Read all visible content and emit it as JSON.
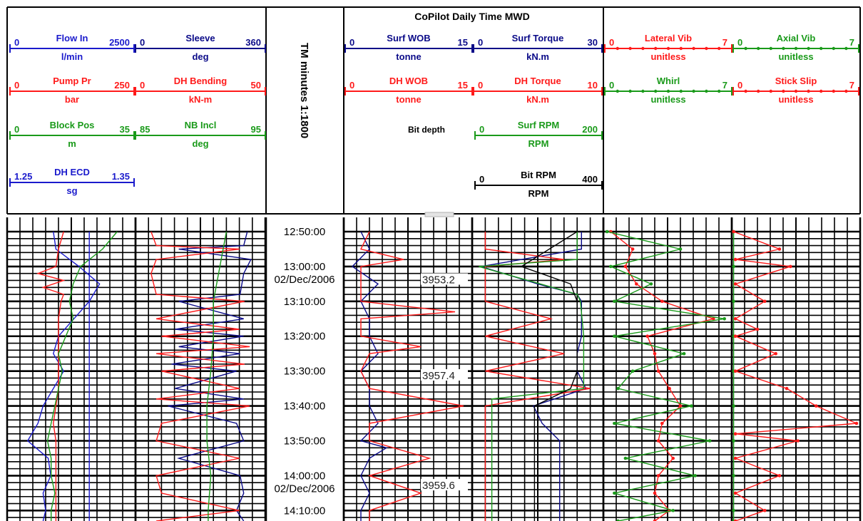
{
  "title": "CoPilot Daily Time MWD",
  "time_axis_label": "TM minutes 1:1800",
  "depth_label": "Bit depth",
  "colors": {
    "blue": "#1a1acc",
    "red": "#ff1a1a",
    "green": "#1a9a1a",
    "navy": "#0a0a88",
    "black": "#000000"
  },
  "tracks": [
    {
      "curves": [
        {
          "name": "Flow In",
          "min": "0",
          "max": "2500",
          "unit": "l/min",
          "color": "blue"
        },
        {
          "name": "Pump Pr",
          "min": "0",
          "max": "250",
          "unit": "bar",
          "color": "red"
        },
        {
          "name": "Block Pos",
          "min": "0",
          "max": "35",
          "unit": "m",
          "color": "green"
        },
        {
          "name": "DH ECD",
          "min": "1.25",
          "max": "1.35",
          "unit": "sg",
          "color": "blue"
        }
      ]
    },
    {
      "curves": [
        {
          "name": "Sleeve",
          "min": "0",
          "max": "360",
          "unit": "deg",
          "color": "navy"
        },
        {
          "name": "DH Bending",
          "min": "0",
          "max": "50",
          "unit": "kN-m",
          "color": "red"
        },
        {
          "name": "NB Incl",
          "min": "85",
          "max": "95",
          "unit": "deg",
          "color": "green"
        }
      ]
    },
    {
      "curves": [
        {
          "name": "Surf WOB",
          "min": "0",
          "max": "15",
          "unit": "tonne",
          "color": "navy"
        },
        {
          "name": "DH WOB",
          "min": "0",
          "max": "15",
          "unit": "tonne",
          "color": "red"
        }
      ]
    },
    {
      "curves": [
        {
          "name": "Surf Torque",
          "min": "0",
          "max": "30",
          "unit": "kN.m",
          "color": "navy"
        },
        {
          "name": "DH Torque",
          "min": "0",
          "max": "10",
          "unit": "kN.m",
          "color": "red"
        },
        {
          "name": "Surf RPM",
          "min": "0",
          "max": "200",
          "unit": "RPM",
          "color": "green"
        },
        {
          "name": "Bit RPM",
          "min": "0",
          "max": "400",
          "unit": "RPM",
          "color": "black"
        }
      ]
    },
    {
      "curves": [
        {
          "name": "Lateral Vib",
          "min": "0",
          "max": "7",
          "unit": "unitless",
          "color": "red"
        },
        {
          "name": "Whirl",
          "min": "0",
          "max": "7",
          "unit": "unitless",
          "color": "green"
        }
      ]
    },
    {
      "curves": [
        {
          "name": "Axial Vib",
          "min": "0",
          "max": "7",
          "unit": "unitless",
          "color": "green"
        },
        {
          "name": "Stick Slip",
          "min": "0",
          "max": "7",
          "unit": "unitless",
          "color": "red"
        }
      ]
    }
  ],
  "chart_data": {
    "type": "line",
    "time_ticks": [
      "12:50:00",
      "13:00:00",
      "13:10:00",
      "13:20:00",
      "13:30:00",
      "13:40:00",
      "13:50:00",
      "14:00:00",
      "14:10:00"
    ],
    "date_labels": [
      {
        "after_time": "13:00:00",
        "text": "02/Dec/2006"
      },
      {
        "after_time": "14:00:00",
        "text": "02/Dec/2006"
      }
    ],
    "depth_labels": [
      {
        "time": "13:04:00",
        "value": "3953.2"
      },
      {
        "time": "13:31:30",
        "value": "3957.4"
      },
      {
        "time": "14:03:00",
        "value": "3959.6"
      }
    ],
    "time_range_minutes": [
      0,
      83
    ],
    "series": [
      {
        "name": "Flow In",
        "track": 0,
        "min": 0,
        "max": 2500,
        "color": "blue",
        "t": [
          0,
          5,
          10,
          15,
          20,
          25,
          30,
          35,
          40,
          45,
          50,
          55,
          60,
          65,
          70,
          75,
          80,
          83
        ],
        "v": [
          900,
          950,
          1400,
          1800,
          1600,
          1300,
          1000,
          900,
          1100,
          900,
          700,
          600,
          400,
          800,
          850,
          700,
          750,
          700
        ]
      },
      {
        "name": "Pump Pr",
        "track": 0,
        "min": 0,
        "max": 250,
        "color": "red",
        "t": [
          0,
          5,
          10,
          12,
          14,
          16,
          18,
          20,
          25,
          30,
          35,
          40,
          45,
          50,
          55,
          60,
          65,
          70,
          75,
          80,
          83
        ],
        "v": [
          110,
          100,
          95,
          60,
          110,
          70,
          110,
          105,
          100,
          100,
          100,
          100,
          100,
          95,
          90,
          95,
          95,
          95,
          95,
          95,
          95
        ]
      },
      {
        "name": "Block Pos",
        "track": 0,
        "min": 0,
        "max": 35,
        "color": "green",
        "t": [
          0,
          5,
          10,
          15,
          20,
          25,
          30,
          35,
          40,
          45,
          50,
          55,
          60,
          65,
          70,
          75,
          80,
          83
        ],
        "v": [
          30,
          26,
          20,
          18,
          17,
          18,
          16,
          14,
          15,
          14,
          13,
          12,
          11,
          12,
          12,
          13,
          12,
          12
        ]
      },
      {
        "name": "DH ECD",
        "track": 0,
        "min": 1.25,
        "max": 1.35,
        "color": "blue",
        "t": [
          0,
          10,
          20,
          30,
          40,
          50,
          60,
          70,
          80,
          83
        ],
        "v": [
          1.314,
          1.314,
          1.314,
          1.314,
          1.314,
          1.314,
          1.314,
          1.314,
          1.314,
          1.314
        ]
      },
      {
        "name": "Sleeve",
        "track": 1,
        "min": 0,
        "max": 360,
        "color": "navy",
        "t": [
          0,
          4,
          5,
          8,
          12,
          18,
          20,
          25,
          28,
          30,
          33,
          35,
          38,
          40,
          45,
          48,
          50,
          55,
          60,
          65,
          70,
          75,
          80,
          83
        ],
        "v": [
          310,
          300,
          120,
          320,
          300,
          290,
          120,
          300,
          110,
          300,
          120,
          290,
          100,
          280,
          110,
          300,
          90,
          280,
          300,
          120,
          290,
          300,
          280,
          300
        ]
      },
      {
        "name": "DH Bending",
        "track": 1,
        "min": 0,
        "max": 50,
        "color": "red",
        "t": [
          0,
          4,
          5,
          8,
          12,
          18,
          20,
          25,
          28,
          30,
          33,
          35,
          38,
          40,
          45,
          48,
          50,
          55,
          60,
          65,
          70,
          75,
          80,
          83
        ],
        "v": [
          6,
          8,
          40,
          8,
          6,
          8,
          42,
          8,
          40,
          10,
          44,
          8,
          42,
          10,
          40,
          8,
          44,
          10,
          8,
          40,
          8,
          10,
          40,
          8
        ]
      },
      {
        "name": "NB Incl",
        "track": 1,
        "min": 85,
        "max": 95,
        "color": "green",
        "t": [
          0,
          10,
          20,
          30,
          40,
          50,
          60,
          70,
          80,
          83
        ],
        "v": [
          92,
          91.5,
          91,
          91,
          90.8,
          90.5,
          90.5,
          90.8,
          90.6,
          90.6
        ]
      },
      {
        "name": "Surf WOB",
        "track": 2,
        "min": 0,
        "max": 15,
        "color": "navy",
        "t": [
          0,
          5,
          10,
          15,
          20,
          25,
          30,
          35,
          40,
          45,
          50,
          55,
          60,
          62,
          65,
          70,
          75,
          80,
          83
        ],
        "v": [
          2,
          3,
          1,
          4,
          2,
          3,
          3,
          4,
          2,
          3,
          3,
          4,
          2,
          5,
          3,
          2,
          3,
          2,
          2
        ]
      },
      {
        "name": "DH WOB",
        "track": 2,
        "min": 0,
        "max": 15,
        "color": "red",
        "t": [
          0,
          5,
          8,
          10,
          15,
          20,
          23,
          25,
          30,
          33,
          35,
          40,
          45,
          50,
          55,
          60,
          65,
          70,
          75,
          80,
          83
        ],
        "v": [
          3,
          2,
          7,
          2,
          2,
          2,
          13,
          2,
          2,
          9,
          3,
          2,
          3,
          14,
          3,
          3,
          10,
          3,
          9,
          3,
          3
        ]
      },
      {
        "name": "Surf Torque",
        "track": 3,
        "min": 0,
        "max": 30,
        "color": "navy",
        "t": [
          0,
          5,
          10,
          15,
          18,
          20,
          25,
          30,
          35,
          40,
          45,
          50,
          55,
          60,
          65,
          70,
          75,
          80,
          83
        ],
        "v": [
          25,
          25,
          2,
          15,
          24,
          25,
          25,
          25,
          24,
          24,
          26,
          14,
          16,
          20,
          20,
          20,
          20,
          20,
          20
        ]
      },
      {
        "name": "DH Torque",
        "track": 3,
        "min": 0,
        "max": 10,
        "color": "red",
        "t": [
          0,
          5,
          8,
          10,
          15,
          20,
          25,
          30,
          35,
          40,
          45,
          50,
          55,
          60,
          65,
          70,
          75,
          80,
          83
        ],
        "v": [
          1,
          1,
          7,
          1,
          1,
          1,
          6,
          1,
          7,
          1,
          9,
          1,
          1,
          1,
          1,
          1,
          1,
          1,
          1
        ]
      },
      {
        "name": "Surf RPM",
        "track": 3,
        "min": 0,
        "max": 200,
        "color": "green",
        "t": [
          0,
          8,
          10,
          18,
          20,
          30,
          40,
          45,
          48,
          50,
          60,
          70,
          80,
          83
        ],
        "v": [
          160,
          160,
          10,
          160,
          165,
          170,
          170,
          170,
          30,
          30,
          30,
          30,
          30,
          30
        ]
      },
      {
        "name": "Bit RPM",
        "track": 3,
        "min": 0,
        "max": 400,
        "color": "black",
        "t": [
          0,
          10,
          15,
          20,
          30,
          40,
          45,
          50,
          55,
          60,
          70,
          80,
          83
        ],
        "v": [
          320,
          150,
          300,
          320,
          320,
          320,
          300,
          190,
          190,
          190,
          190,
          190,
          190
        ]
      },
      {
        "name": "Lateral Vib",
        "track": 4,
        "min": 0,
        "max": 7,
        "color": "red",
        "t": [
          0,
          5,
          10,
          15,
          20,
          25,
          30,
          35,
          40,
          45,
          50,
          55,
          60,
          65,
          70,
          75,
          80,
          83
        ],
        "v": [
          0.4,
          1.6,
          1.2,
          1.8,
          3.2,
          6.0,
          2.4,
          2.8,
          3.0,
          3.6,
          4.2,
          3.2,
          3.0,
          3.8,
          3.0,
          2.8,
          3.6,
          2.8
        ]
      },
      {
        "name": "Whirl",
        "track": 4,
        "min": 0,
        "max": 7,
        "color": "green",
        "t": [
          0,
          5,
          10,
          15,
          20,
          25,
          30,
          35,
          40,
          45,
          50,
          55,
          60,
          65,
          70,
          75,
          80,
          83
        ],
        "v": [
          0.2,
          4.2,
          0.4,
          2.6,
          0.6,
          6.6,
          0.6,
          4.4,
          1.6,
          0.8,
          4.8,
          0.6,
          5.8,
          1.2,
          5.0,
          0.6,
          3.8,
          0.8
        ]
      },
      {
        "name": "Axial Vib",
        "track": 5,
        "min": 0,
        "max": 7,
        "color": "green",
        "t": [
          0,
          10,
          20,
          30,
          40,
          50,
          60,
          70,
          80,
          83
        ],
        "v": [
          0.1,
          0.1,
          0.1,
          0.1,
          0.1,
          0.1,
          0.1,
          0.1,
          0.1,
          0.1
        ]
      },
      {
        "name": "Stick Slip",
        "track": 5,
        "min": 0,
        "max": 7,
        "color": "red",
        "t": [
          0,
          5,
          8,
          10,
          15,
          20,
          25,
          28,
          30,
          35,
          40,
          45,
          50,
          55,
          58,
          60,
          65,
          70,
          75,
          80,
          83
        ],
        "v": [
          0.1,
          2.6,
          0.2,
          3.2,
          0.2,
          1.8,
          0.2,
          1.4,
          0.2,
          2.4,
          0.2,
          3.0,
          4.6,
          6.8,
          0.2,
          3.6,
          0.2,
          2.6,
          0.2,
          1.8,
          0.2
        ]
      }
    ]
  }
}
